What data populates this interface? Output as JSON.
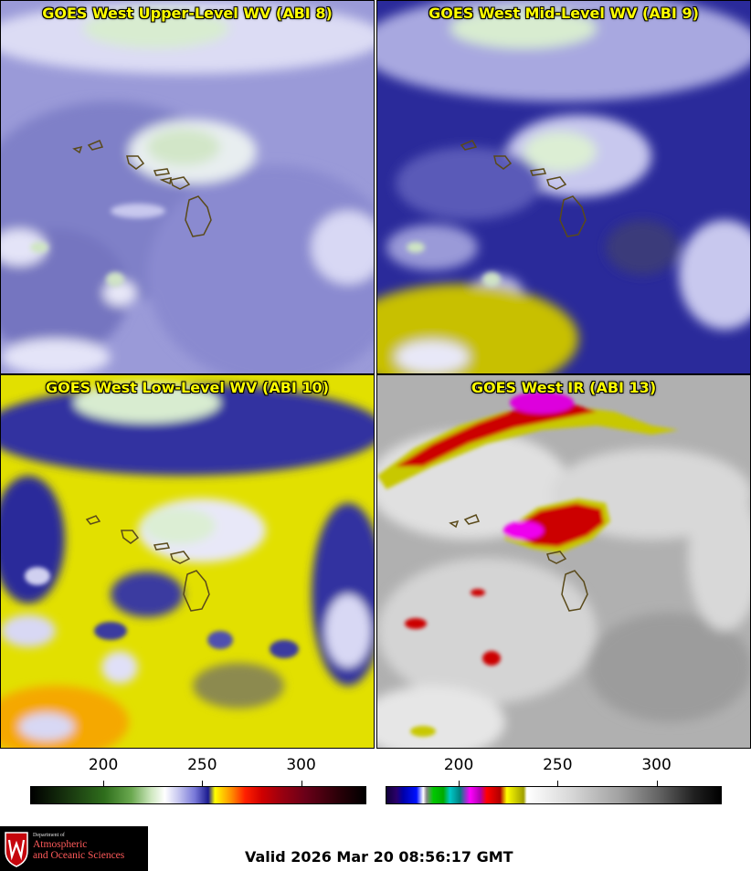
{
  "panels": [
    {
      "title": "GOES West Upper-Level WV (ABI 8)",
      "band": "ABI 8",
      "palette": "water-vapor"
    },
    {
      "title": "GOES West Mid-Level WV (ABI 9)",
      "band": "ABI 9",
      "palette": "water-vapor"
    },
    {
      "title": "GOES West Low-Level WV (ABI 10)",
      "band": "ABI 10",
      "palette": "water-vapor"
    },
    {
      "title": "GOES West IR (ABI 13)",
      "band": "ABI 13",
      "palette": "infrared"
    }
  ],
  "colorbars": [
    {
      "name": "water-vapor",
      "ticks": [
        "200",
        "250",
        "300"
      ],
      "tick_values": [
        200,
        250,
        300
      ],
      "range": [
        163,
        333
      ]
    },
    {
      "name": "infrared",
      "ticks": [
        "200",
        "250",
        "300"
      ],
      "tick_values": [
        200,
        250,
        300
      ],
      "range": [
        163,
        333
      ]
    }
  ],
  "logo": {
    "department": "Department of",
    "line1": "Atmospheric",
    "line2": "and Oceanic Sciences",
    "shield_letter": "W"
  },
  "valid_time": "Valid 2026 Mar 20 08:56:17 GMT",
  "colors": {
    "title_text": "#ffff00",
    "coastline": "#5a4a1a",
    "logo_background": "#000000",
    "logo_accent": "#c5050c"
  }
}
